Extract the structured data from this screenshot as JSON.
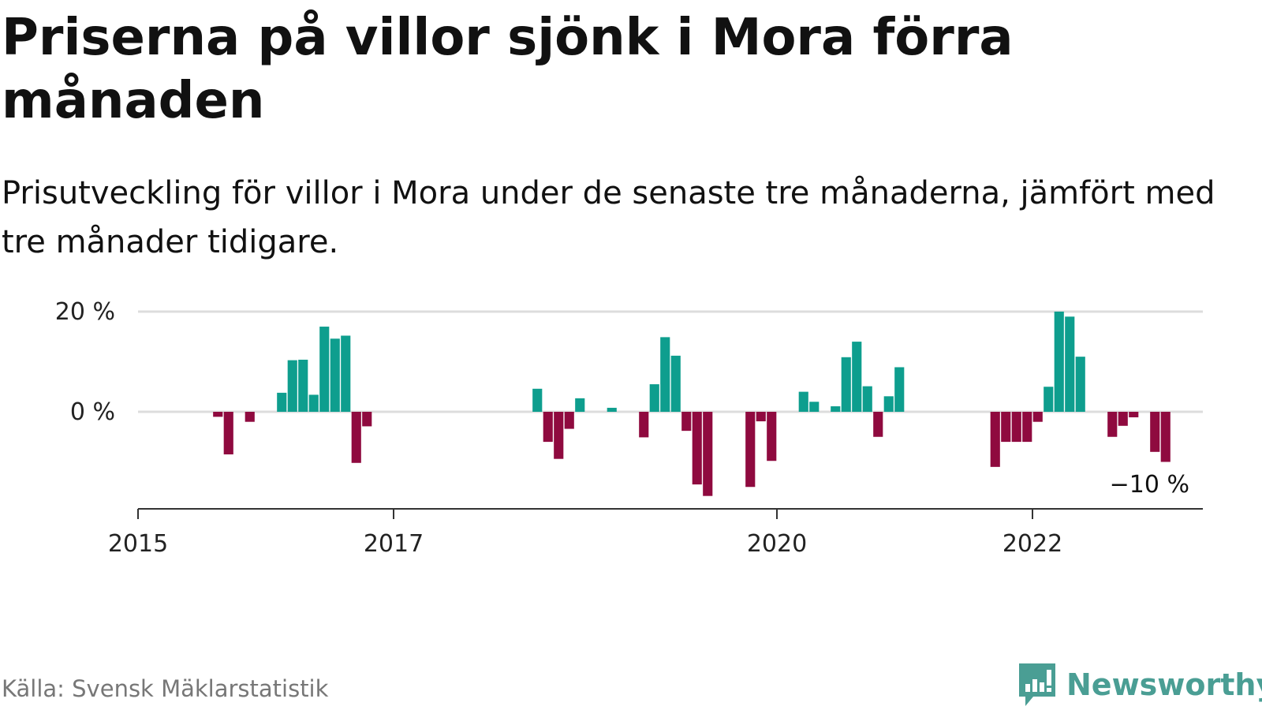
{
  "title": "Priserna på villor sjönk i Mora förra månaden",
  "subtitle": "Prisutveckling för villor i Mora under de senaste tre månaderna, jämfört med tre månader tidigare.",
  "source": "Källa: Svensk Mäklarstatistik",
  "brand": {
    "name": "Newsworthy",
    "icon": "bar-chart-speech-bubble-icon",
    "color": "#4a9e94"
  },
  "colors": {
    "positive": "#0e9e8e",
    "negative": "#8f0a3f",
    "grid": "#dddddd",
    "axis": "#333333"
  },
  "chart_data": {
    "type": "bar",
    "x_unit": "month",
    "y_ticks": [
      {
        "value": 20,
        "label": "20 %"
      },
      {
        "value": 0,
        "label": "0 %"
      }
    ],
    "x_ticks": [
      {
        "year": 2015,
        "label": "2015"
      },
      {
        "year": 2017,
        "label": "2017"
      },
      {
        "year": 2020,
        "label": "2020"
      },
      {
        "year": 2022,
        "label": "2022"
      }
    ],
    "xlim": [
      "2015-01",
      "2023-05"
    ],
    "ylim": [
      -19,
      20
    ],
    "grid": true,
    "last_label": "−10 %",
    "values": [
      {
        "month": "2015-08",
        "value": -1
      },
      {
        "month": "2015-09",
        "value": -8.5
      },
      {
        "month": "2015-11",
        "value": -2
      },
      {
        "month": "2016-02",
        "value": 3.8
      },
      {
        "month": "2016-03",
        "value": 10.3
      },
      {
        "month": "2016-04",
        "value": 10.4
      },
      {
        "month": "2016-05",
        "value": 3.4
      },
      {
        "month": "2016-06",
        "value": 17
      },
      {
        "month": "2016-07",
        "value": 14.6
      },
      {
        "month": "2016-08",
        "value": 15.2
      },
      {
        "month": "2016-09",
        "value": -10.2
      },
      {
        "month": "2016-10",
        "value": -2.9
      },
      {
        "month": "2018-02",
        "value": 4.6
      },
      {
        "month": "2018-03",
        "value": -6
      },
      {
        "month": "2018-04",
        "value": -9.4
      },
      {
        "month": "2018-05",
        "value": -3.4
      },
      {
        "month": "2018-06",
        "value": 2.7
      },
      {
        "month": "2018-09",
        "value": 0.8
      },
      {
        "month": "2018-12",
        "value": -5.1
      },
      {
        "month": "2019-01",
        "value": 5.5
      },
      {
        "month": "2019-02",
        "value": 14.9
      },
      {
        "month": "2019-03",
        "value": 11.2
      },
      {
        "month": "2019-04",
        "value": -3.8
      },
      {
        "month": "2019-05",
        "value": -14.5
      },
      {
        "month": "2019-06",
        "value": -16.8
      },
      {
        "month": "2019-10",
        "value": -15
      },
      {
        "month": "2019-11",
        "value": -1.9
      },
      {
        "month": "2019-12",
        "value": -9.8
      },
      {
        "month": "2020-03",
        "value": 4
      },
      {
        "month": "2020-04",
        "value": 2
      },
      {
        "month": "2020-06",
        "value": 1.1
      },
      {
        "month": "2020-07",
        "value": 10.9
      },
      {
        "month": "2020-08",
        "value": 14
      },
      {
        "month": "2020-09",
        "value": 5.1
      },
      {
        "month": "2020-10",
        "value": -5
      },
      {
        "month": "2020-11",
        "value": 3.1
      },
      {
        "month": "2020-12",
        "value": 8.9
      },
      {
        "month": "2021-09",
        "value": -11
      },
      {
        "month": "2021-10",
        "value": -6
      },
      {
        "month": "2021-11",
        "value": -6
      },
      {
        "month": "2021-12",
        "value": -6
      },
      {
        "month": "2022-01",
        "value": -2
      },
      {
        "month": "2022-02",
        "value": 5
      },
      {
        "month": "2022-03",
        "value": 20
      },
      {
        "month": "2022-04",
        "value": 19
      },
      {
        "month": "2022-05",
        "value": 11
      },
      {
        "month": "2022-08",
        "value": -5
      },
      {
        "month": "2022-09",
        "value": -2.8
      },
      {
        "month": "2022-10",
        "value": -1.1
      },
      {
        "month": "2022-12",
        "value": -8
      },
      {
        "month": "2023-01",
        "value": -10
      }
    ]
  }
}
